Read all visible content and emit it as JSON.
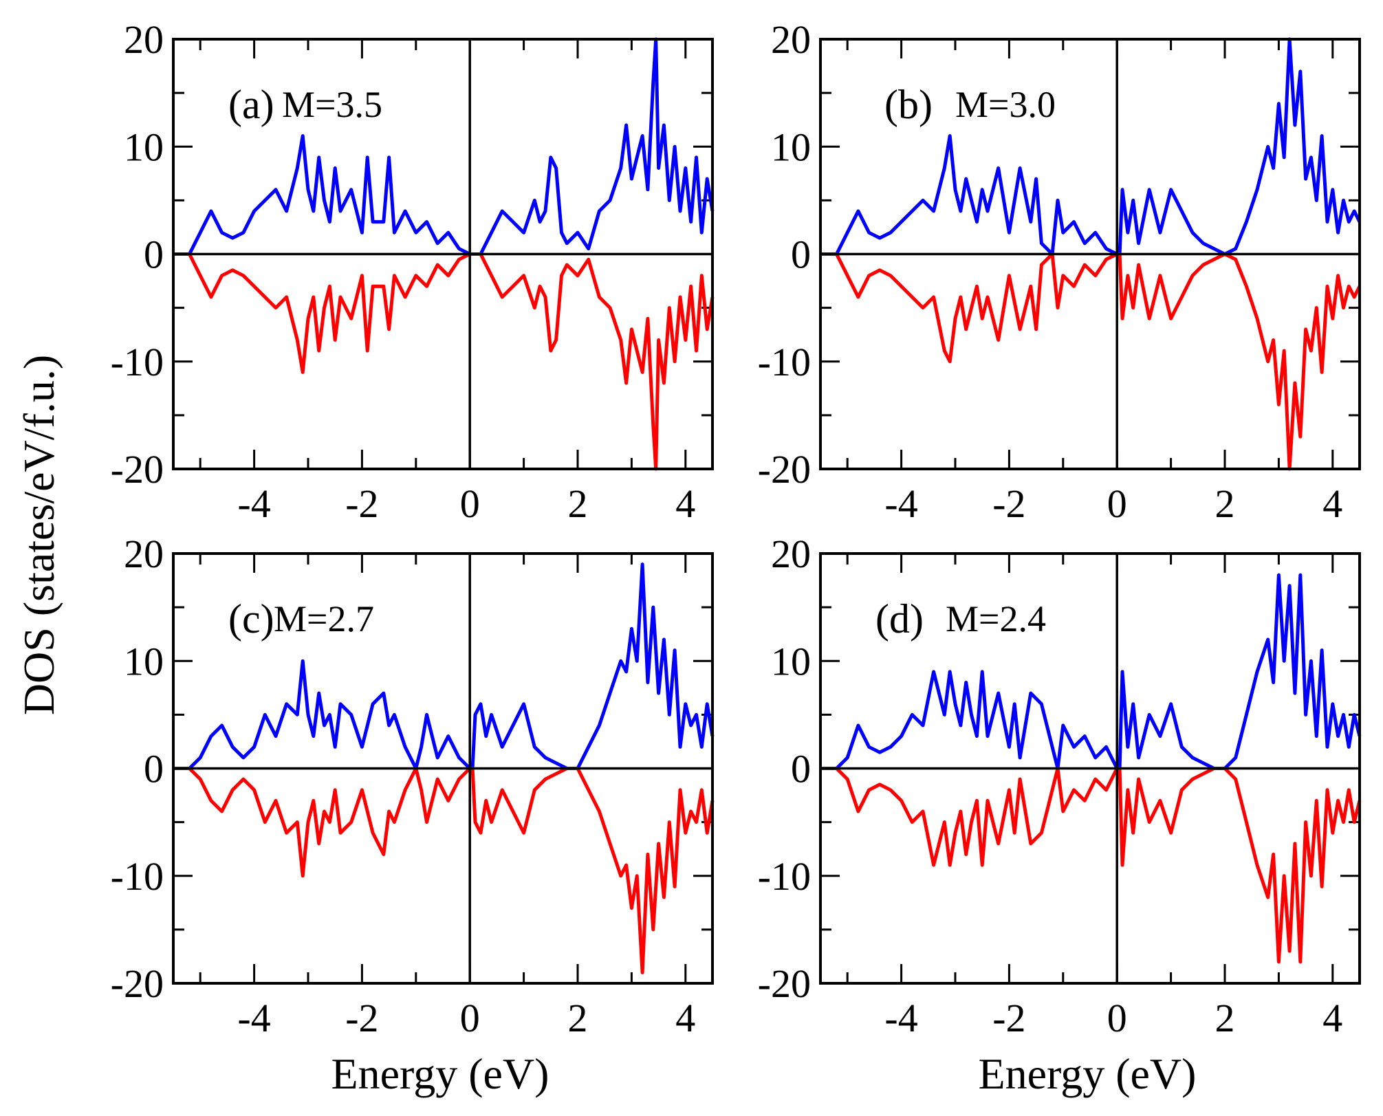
{
  "chart_data": {
    "type": "line",
    "ylabel": "DOS (states/eV/f.u.)",
    "xlabel": "Energy (eV)",
    "xlim": [
      -5.5,
      4.5
    ],
    "ylim": [
      -20,
      20
    ],
    "x_ticks": [
      -4,
      -2,
      0,
      2,
      4
    ],
    "x_tick_labels": [
      "-4",
      "-2",
      "0",
      "2",
      "4"
    ],
    "y_ticks": [
      -20,
      -10,
      0,
      10,
      20
    ],
    "y_tick_labels": [
      "-20",
      "-10",
      "0",
      "10",
      "20"
    ],
    "series_colors": {
      "spin_up": "#0000ff",
      "spin_down": "#ff0000",
      "axes": "#000000"
    },
    "panels": [
      {
        "id": "a",
        "tag": "(a)",
        "label": "M=3.5",
        "x": [
          -5.5,
          -5.2,
          -5.0,
          -4.8,
          -4.6,
          -4.4,
          -4.2,
          -4.0,
          -3.8,
          -3.6,
          -3.4,
          -3.2,
          -3.1,
          -3.0,
          -2.9,
          -2.8,
          -2.7,
          -2.6,
          -2.5,
          -2.4,
          -2.2,
          -2.0,
          -1.9,
          -1.8,
          -1.6,
          -1.5,
          -1.4,
          -1.2,
          -1.0,
          -0.8,
          -0.6,
          -0.4,
          -0.2,
          0.0,
          0.1,
          0.2,
          0.4,
          0.6,
          0.8,
          1.0,
          1.2,
          1.3,
          1.4,
          1.5,
          1.6,
          1.7,
          1.8,
          2.0,
          2.2,
          2.4,
          2.6,
          2.8,
          2.9,
          3.0,
          3.1,
          3.2,
          3.3,
          3.4,
          3.45,
          3.5,
          3.6,
          3.7,
          3.8,
          3.9,
          4.0,
          4.1,
          4.2,
          4.3,
          4.4,
          4.5
        ],
        "up": [
          0,
          0,
          2,
          4,
          2,
          1.5,
          2,
          4,
          5,
          6,
          4,
          8,
          11,
          6,
          4,
          9,
          5,
          3,
          8,
          4,
          6,
          2,
          9,
          3,
          3,
          9,
          2,
          4,
          2,
          3,
          1,
          2,
          0.5,
          0,
          0,
          0,
          2,
          4,
          3,
          2,
          5,
          3,
          4,
          9,
          8,
          2,
          1,
          2,
          0.5,
          4,
          5,
          8,
          12,
          7,
          9,
          11,
          6,
          16,
          20,
          8,
          12,
          5,
          10,
          4,
          8,
          3,
          9,
          2,
          7,
          4
        ],
        "down": [
          0,
          0,
          -2,
          -4,
          -2,
          -1.5,
          -2,
          -3,
          -4,
          -5,
          -4,
          -8,
          -11,
          -6,
          -4,
          -9,
          -5,
          -3,
          -8,
          -4,
          -6,
          -2,
          -9,
          -3,
          -3,
          -7,
          -2,
          -4,
          -2,
          -3,
          -1,
          -2,
          -0.5,
          0,
          0,
          0,
          -2,
          -4,
          -3,
          -2,
          -5,
          -3,
          -4,
          -9,
          -8,
          -2,
          -1,
          -2,
          -0.5,
          -4,
          -5,
          -8,
          -12,
          -7,
          -9,
          -11,
          -6,
          -16,
          -20,
          -8,
          -12,
          -5,
          -10,
          -4,
          -8,
          -3,
          -9,
          -2,
          -7,
          -4
        ]
      },
      {
        "id": "b",
        "tag": "(b)",
        "label": "M=3.0",
        "x": [
          -5.5,
          -5.2,
          -5.0,
          -4.8,
          -4.6,
          -4.4,
          -4.2,
          -4.0,
          -3.8,
          -3.6,
          -3.4,
          -3.2,
          -3.1,
          -3.0,
          -2.9,
          -2.8,
          -2.7,
          -2.6,
          -2.5,
          -2.4,
          -2.2,
          -2.0,
          -1.8,
          -1.6,
          -1.5,
          -1.4,
          -1.2,
          -1.1,
          -1.0,
          -0.8,
          -0.6,
          -0.4,
          -0.2,
          0.0,
          0.05,
          0.1,
          0.2,
          0.3,
          0.4,
          0.6,
          0.8,
          1.0,
          1.2,
          1.4,
          1.6,
          1.8,
          2.0,
          2.2,
          2.4,
          2.6,
          2.8,
          2.9,
          3.0,
          3.1,
          3.2,
          3.3,
          3.4,
          3.5,
          3.6,
          3.7,
          3.8,
          3.9,
          4.0,
          4.1,
          4.2,
          4.3,
          4.4,
          4.5
        ],
        "up": [
          0,
          0,
          2,
          4,
          2,
          1.5,
          2,
          3,
          4,
          5,
          4,
          8,
          11,
          6,
          4,
          7,
          5,
          3,
          6,
          4,
          8,
          2,
          8,
          3,
          7,
          1,
          0,
          5,
          2,
          3,
          1,
          2,
          0.5,
          0,
          0,
          6,
          2,
          5,
          1,
          6,
          2,
          6,
          4,
          2,
          1,
          0.5,
          0,
          0.5,
          3,
          6,
          10,
          8,
          14,
          9,
          20,
          12,
          17,
          7,
          9,
          5,
          11,
          3,
          6,
          2,
          5,
          3,
          4,
          3
        ],
        "down": [
          0,
          0,
          -2,
          -4,
          -2,
          -1.5,
          -2,
          -3,
          -4,
          -5,
          -4,
          -9,
          -10,
          -6,
          -4,
          -7,
          -5,
          -3,
          -6,
          -4,
          -8,
          -2,
          -7,
          -3,
          -7,
          -1,
          0,
          -5,
          -2,
          -3,
          -1,
          -2,
          -0.5,
          0,
          0,
          -6,
          -2,
          -5,
          -1,
          -6,
          -2,
          -6,
          -4,
          -2,
          -1,
          -0.5,
          0,
          -0.5,
          -3,
          -6,
          -10,
          -8,
          -14,
          -9,
          -20,
          -12,
          -17,
          -7,
          -9,
          -5,
          -11,
          -3,
          -6,
          -2,
          -5,
          -3,
          -4,
          -3
        ]
      },
      {
        "id": "c",
        "tag": "(c)",
        "label": "M=2.7",
        "x": [
          -5.5,
          -5.2,
          -5.0,
          -4.8,
          -4.6,
          -4.4,
          -4.2,
          -4.0,
          -3.8,
          -3.6,
          -3.4,
          -3.2,
          -3.1,
          -3.0,
          -2.9,
          -2.8,
          -2.7,
          -2.6,
          -2.5,
          -2.4,
          -2.2,
          -2.0,
          -1.8,
          -1.6,
          -1.5,
          -1.4,
          -1.2,
          -1.0,
          -0.9,
          -0.8,
          -0.6,
          -0.4,
          -0.2,
          0.0,
          0.05,
          0.1,
          0.2,
          0.3,
          0.4,
          0.6,
          0.8,
          1.0,
          1.2,
          1.4,
          1.6,
          1.8,
          2.0,
          2.2,
          2.4,
          2.6,
          2.8,
          2.9,
          3.0,
          3.1,
          3.2,
          3.3,
          3.4,
          3.5,
          3.6,
          3.7,
          3.8,
          3.9,
          4.0,
          4.1,
          4.2,
          4.3,
          4.4,
          4.5
        ],
        "up": [
          0,
          0,
          1,
          3,
          4,
          2,
          1,
          2,
          5,
          3,
          6,
          5,
          10,
          5,
          3,
          7,
          4,
          5,
          2,
          6,
          5,
          2,
          6,
          7,
          4,
          5,
          2,
          0,
          2,
          5,
          1,
          3,
          1,
          0,
          0,
          5,
          6,
          3,
          5,
          2,
          4,
          6,
          2,
          1,
          0.5,
          0,
          0,
          2,
          4,
          7,
          10,
          9,
          13,
          10,
          19,
          8,
          15,
          7,
          12,
          5,
          11,
          2,
          6,
          4,
          5,
          2,
          6,
          3
        ],
        "down": [
          0,
          0,
          -1,
          -3,
          -4,
          -2,
          -1,
          -2,
          -5,
          -3,
          -6,
          -5,
          -10,
          -5,
          -3,
          -7,
          -4,
          -5,
          -2,
          -6,
          -5,
          -2,
          -6,
          -8,
          -4,
          -5,
          -2,
          0,
          -2,
          -5,
          -1,
          -3,
          -1,
          0,
          0,
          -5,
          -6,
          -3,
          -5,
          -2,
          -4,
          -6,
          -2,
          -1,
          -0.5,
          0,
          0,
          -2,
          -4,
          -7,
          -10,
          -9,
          -13,
          -10,
          -19,
          -8,
          -15,
          -7,
          -12,
          -5,
          -11,
          -2,
          -6,
          -4,
          -5,
          -2,
          -6,
          -3
        ]
      },
      {
        "id": "d",
        "tag": "(d)",
        "label": "M=2.4",
        "x": [
          -5.5,
          -5.2,
          -5.0,
          -4.8,
          -4.6,
          -4.4,
          -4.2,
          -4.0,
          -3.8,
          -3.6,
          -3.4,
          -3.2,
          -3.1,
          -3.0,
          -2.9,
          -2.8,
          -2.7,
          -2.6,
          -2.5,
          -2.4,
          -2.2,
          -2.0,
          -1.9,
          -1.8,
          -1.6,
          -1.4,
          -1.2,
          -1.1,
          -1.0,
          -0.8,
          -0.6,
          -0.4,
          -0.2,
          0.0,
          0.05,
          0.1,
          0.2,
          0.3,
          0.4,
          0.6,
          0.8,
          1.0,
          1.2,
          1.4,
          1.6,
          1.8,
          2.0,
          2.2,
          2.4,
          2.6,
          2.8,
          2.9,
          3.0,
          3.1,
          3.2,
          3.3,
          3.4,
          3.5,
          3.6,
          3.7,
          3.8,
          3.9,
          4.0,
          4.1,
          4.2,
          4.3,
          4.4,
          4.5
        ],
        "up": [
          0,
          0,
          1,
          4,
          2,
          1.5,
          2,
          3,
          5,
          4,
          9,
          5,
          9,
          6,
          4,
          8,
          5,
          3,
          9,
          3,
          7,
          2,
          6,
          1,
          7,
          6,
          2,
          0,
          4,
          2,
          3,
          1,
          2,
          0,
          0,
          9,
          2,
          6,
          1,
          5,
          3,
          6,
          2,
          1,
          0.5,
          0,
          0,
          1,
          5,
          9,
          12,
          8,
          18,
          10,
          17,
          7,
          18,
          5,
          10,
          3,
          11,
          2,
          6,
          3,
          5,
          2,
          5,
          3
        ],
        "down": [
          0,
          0,
          -1,
          -4,
          -2,
          -1.5,
          -2,
          -3,
          -5,
          -4,
          -9,
          -5,
          -9,
          -6,
          -4,
          -8,
          -5,
          -3,
          -9,
          -3,
          -7,
          -2,
          -6,
          -1,
          -7,
          -6,
          -2,
          0,
          -4,
          -2,
          -3,
          -1,
          -2,
          0,
          0,
          -9,
          -2,
          -6,
          -1,
          -5,
          -3,
          -6,
          -2,
          -1,
          -0.5,
          0,
          0,
          -1,
          -5,
          -9,
          -12,
          -8,
          -18,
          -10,
          -17,
          -7,
          -18,
          -5,
          -10,
          -3,
          -11,
          -2,
          -6,
          -3,
          -5,
          -2,
          -5,
          -3
        ]
      }
    ]
  }
}
